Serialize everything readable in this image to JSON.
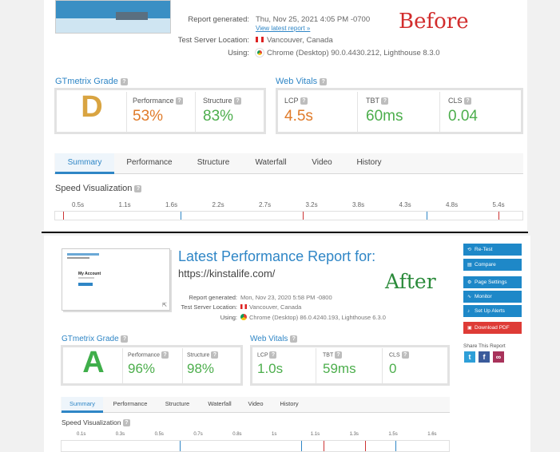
{
  "before": {
    "label": "Before",
    "report": {
      "generated_label": "Report generated:",
      "generated_value": "Thu, Nov 25, 2021 4:05 PM -0700",
      "latest_link": "View latest report »",
      "location_label": "Test Server Location:",
      "location_value": "Vancouver, Canada",
      "using_label": "Using:",
      "using_value": "Chrome (Desktop) 90.0.4430.212, Lighthouse 8.3.0"
    },
    "grade": {
      "title": "GTmetrix Grade",
      "letter": "D",
      "performance_label": "Performance",
      "performance_value": "53%",
      "structure_label": "Structure",
      "structure_value": "83%"
    },
    "vitals": {
      "title": "Web Vitals",
      "lcp_label": "LCP",
      "lcp_value": "4.5s",
      "tbt_label": "TBT",
      "tbt_value": "60ms",
      "cls_label": "CLS",
      "cls_value": "0.04"
    },
    "tabs": [
      "Summary",
      "Performance",
      "Structure",
      "Waterfall",
      "Video",
      "History"
    ],
    "speed_title": "Speed Visualization",
    "ticks": [
      "0.5s",
      "1.1s",
      "1.6s",
      "2.2s",
      "2.7s",
      "3.2s",
      "3.8s",
      "4.3s",
      "4.8s",
      "5.4s"
    ]
  },
  "after": {
    "label": "After",
    "heading": "Latest Performance Report for:",
    "url": "https://kinstalife.com/",
    "thumb_title": "My Account",
    "report": {
      "generated_label": "Report generated:",
      "generated_value": "Mon, Nov 23, 2020 5:58 PM -0800",
      "location_label": "Test Server Location:",
      "location_value": "Vancouver, Canada",
      "using_label": "Using:",
      "using_value": "Chrome (Desktop) 86.0.4240.193, Lighthouse 6.3.0"
    },
    "grade": {
      "title": "GTmetrix Grade",
      "letter": "A",
      "performance_label": "Performance",
      "performance_value": "96%",
      "structure_label": "Structure",
      "structure_value": "98%"
    },
    "vitals": {
      "title": "Web Vitals",
      "lcp_label": "LCP",
      "lcp_value": "1.0s",
      "tbt_label": "TBT",
      "tbt_value": "59ms",
      "cls_label": "CLS",
      "cls_value": "0"
    },
    "tabs": [
      "Summary",
      "Performance",
      "Structure",
      "Waterfall",
      "Video",
      "History"
    ],
    "speed_title": "Speed Visualization",
    "ticks": [
      "0.1s",
      "0.3s",
      "0.5s",
      "0.7s",
      "0.8s",
      "1s",
      "1.1s",
      "1.3s",
      "1.5s",
      "1.6s"
    ],
    "sidebar": {
      "retest": "Re-Test",
      "compare": "Compare",
      "page_settings": "Page Settings",
      "monitor": "Monitor",
      "alerts": "Set Up Alerts",
      "download": "Download PDF",
      "share_title": "Share This Report"
    }
  },
  "colors": {
    "blue": "#2f86c6",
    "grade_d": "#d9a441",
    "grade_a": "#3fae4a",
    "orange": "#e07b2a",
    "green": "#4cae4c",
    "red_label": "#d22c2c",
    "green_label": "#2a8a3a"
  }
}
